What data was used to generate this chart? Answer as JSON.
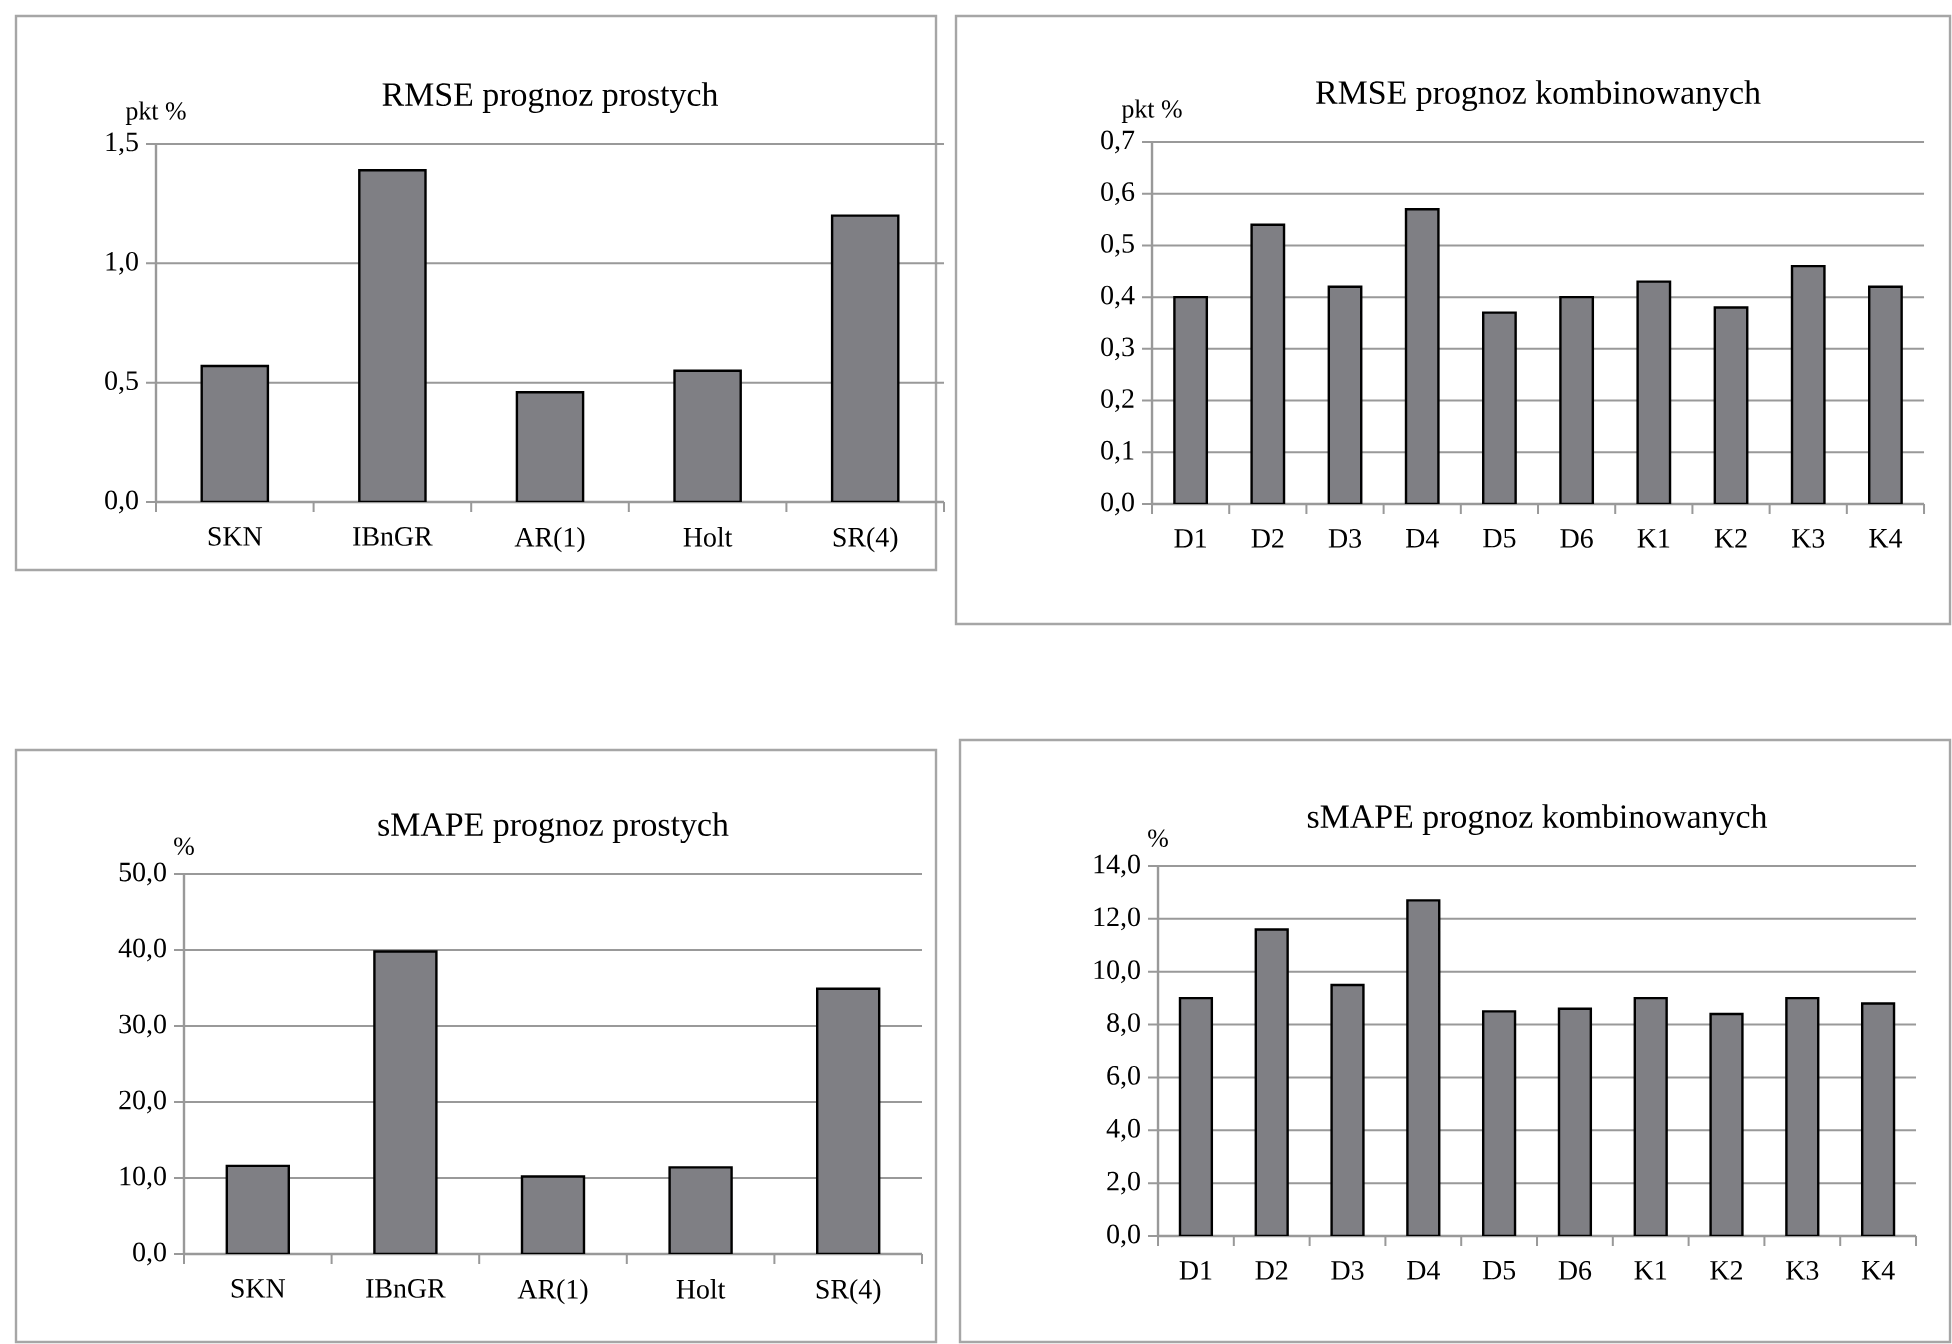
{
  "chart_data": [
    {
      "type": "bar",
      "title": "RMSE prognoz prostych",
      "ylabel": "pkt %",
      "categories": [
        "SKN",
        "IBnGR",
        "AR(1)",
        "Holt",
        "SR(4)"
      ],
      "values": [
        0.57,
        1.39,
        0.46,
        0.55,
        1.2
      ],
      "color": "#7f7f84",
      "ylim": [
        0,
        1.5
      ],
      "yticks": [
        {
          "value": 0,
          "label": "0,0"
        },
        {
          "value": 0.5,
          "label": "0,5"
        },
        {
          "value": 1.0,
          "label": "1,0"
        },
        {
          "value": 1.5,
          "label": "1,5"
        }
      ],
      "grid": "y"
    },
    {
      "type": "bar",
      "title": "RMSE prognoz kombinowanych",
      "ylabel": "pkt %",
      "categories": [
        "D1",
        "D2",
        "D3",
        "D4",
        "D5",
        "D6",
        "K1",
        "K2",
        "K3",
        "K4"
      ],
      "values": [
        0.4,
        0.54,
        0.42,
        0.57,
        0.37,
        0.4,
        0.43,
        0.38,
        0.46,
        0.42
      ],
      "color": "#7f7f84",
      "ylim": [
        0,
        0.7
      ],
      "yticks": [
        {
          "value": 0,
          "label": "0,0"
        },
        {
          "value": 0.1,
          "label": "0,1"
        },
        {
          "value": 0.2,
          "label": "0,2"
        },
        {
          "value": 0.3,
          "label": "0,3"
        },
        {
          "value": 0.4,
          "label": "0,4"
        },
        {
          "value": 0.5,
          "label": "0,5"
        },
        {
          "value": 0.6,
          "label": "0,6"
        },
        {
          "value": 0.7,
          "label": "0,7"
        }
      ],
      "grid": "y"
    },
    {
      "type": "bar",
      "title": "sMAPE prognoz prostych",
      "ylabel": "%",
      "categories": [
        "SKN",
        "IBnGR",
        "AR(1)",
        "Holt",
        "SR(4)"
      ],
      "values": [
        11.6,
        39.8,
        10.2,
        11.4,
        34.9
      ],
      "color": "#7f7f84",
      "ylim": [
        0,
        50
      ],
      "yticks": [
        {
          "value": 0,
          "label": "0,0"
        },
        {
          "value": 10,
          "label": "10,0"
        },
        {
          "value": 20,
          "label": "20,0"
        },
        {
          "value": 30,
          "label": "30,0"
        },
        {
          "value": 40,
          "label": "40,0"
        },
        {
          "value": 50,
          "label": "50,0"
        }
      ],
      "grid": "y"
    },
    {
      "type": "bar",
      "title": "sMAPE prognoz kombinowanych",
      "ylabel": "%",
      "categories": [
        "D1",
        "D2",
        "D3",
        "D4",
        "D5",
        "D6",
        "K1",
        "K2",
        "K3",
        "K4"
      ],
      "values": [
        9.0,
        11.6,
        9.5,
        12.7,
        8.5,
        8.6,
        9.0,
        8.4,
        9.0,
        8.8
      ],
      "color": "#7f7f84",
      "ylim": [
        0,
        14
      ],
      "yticks": [
        {
          "value": 0,
          "label": "0,0"
        },
        {
          "value": 2,
          "label": "2,0"
        },
        {
          "value": 4,
          "label": "4,0"
        },
        {
          "value": 6,
          "label": "6,0"
        },
        {
          "value": 8,
          "label": "8,0"
        },
        {
          "value": 10,
          "label": "10,0"
        },
        {
          "value": 12,
          "label": "12,0"
        },
        {
          "value": 14,
          "label": "14,0"
        }
      ],
      "grid": "y"
    }
  ]
}
